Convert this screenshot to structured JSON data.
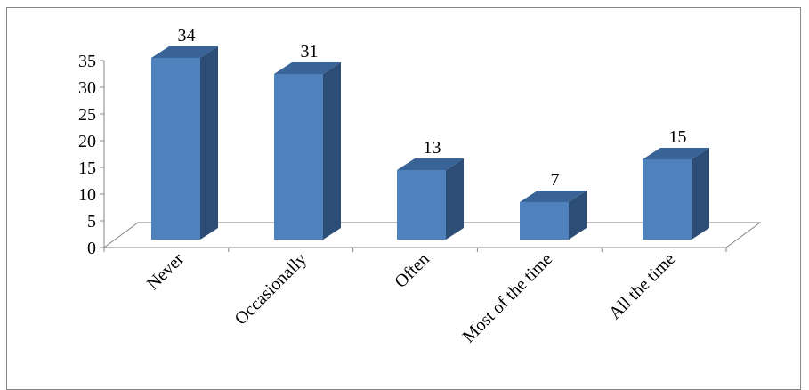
{
  "chart_data": {
    "type": "bar",
    "style": "3d-column",
    "categories": [
      "Never",
      "Occasionally",
      "Often",
      "Most of the time",
      "All the time"
    ],
    "values": [
      34,
      31,
      13,
      7,
      15
    ],
    "data_labels": [
      "34",
      "31",
      "13",
      "7",
      "15"
    ],
    "yticks": [
      "0",
      "5",
      "10",
      "15",
      "20",
      "25",
      "30",
      "35"
    ],
    "ylim": [
      0,
      35
    ],
    "title": "",
    "xlabel": "",
    "ylabel": "",
    "grid": false,
    "legend": false,
    "colors": {
      "bar_front": "#4F81BD",
      "bar_side": "#2C4D75",
      "bar_top": "#3A6398",
      "floor_line": "#868686"
    }
  }
}
